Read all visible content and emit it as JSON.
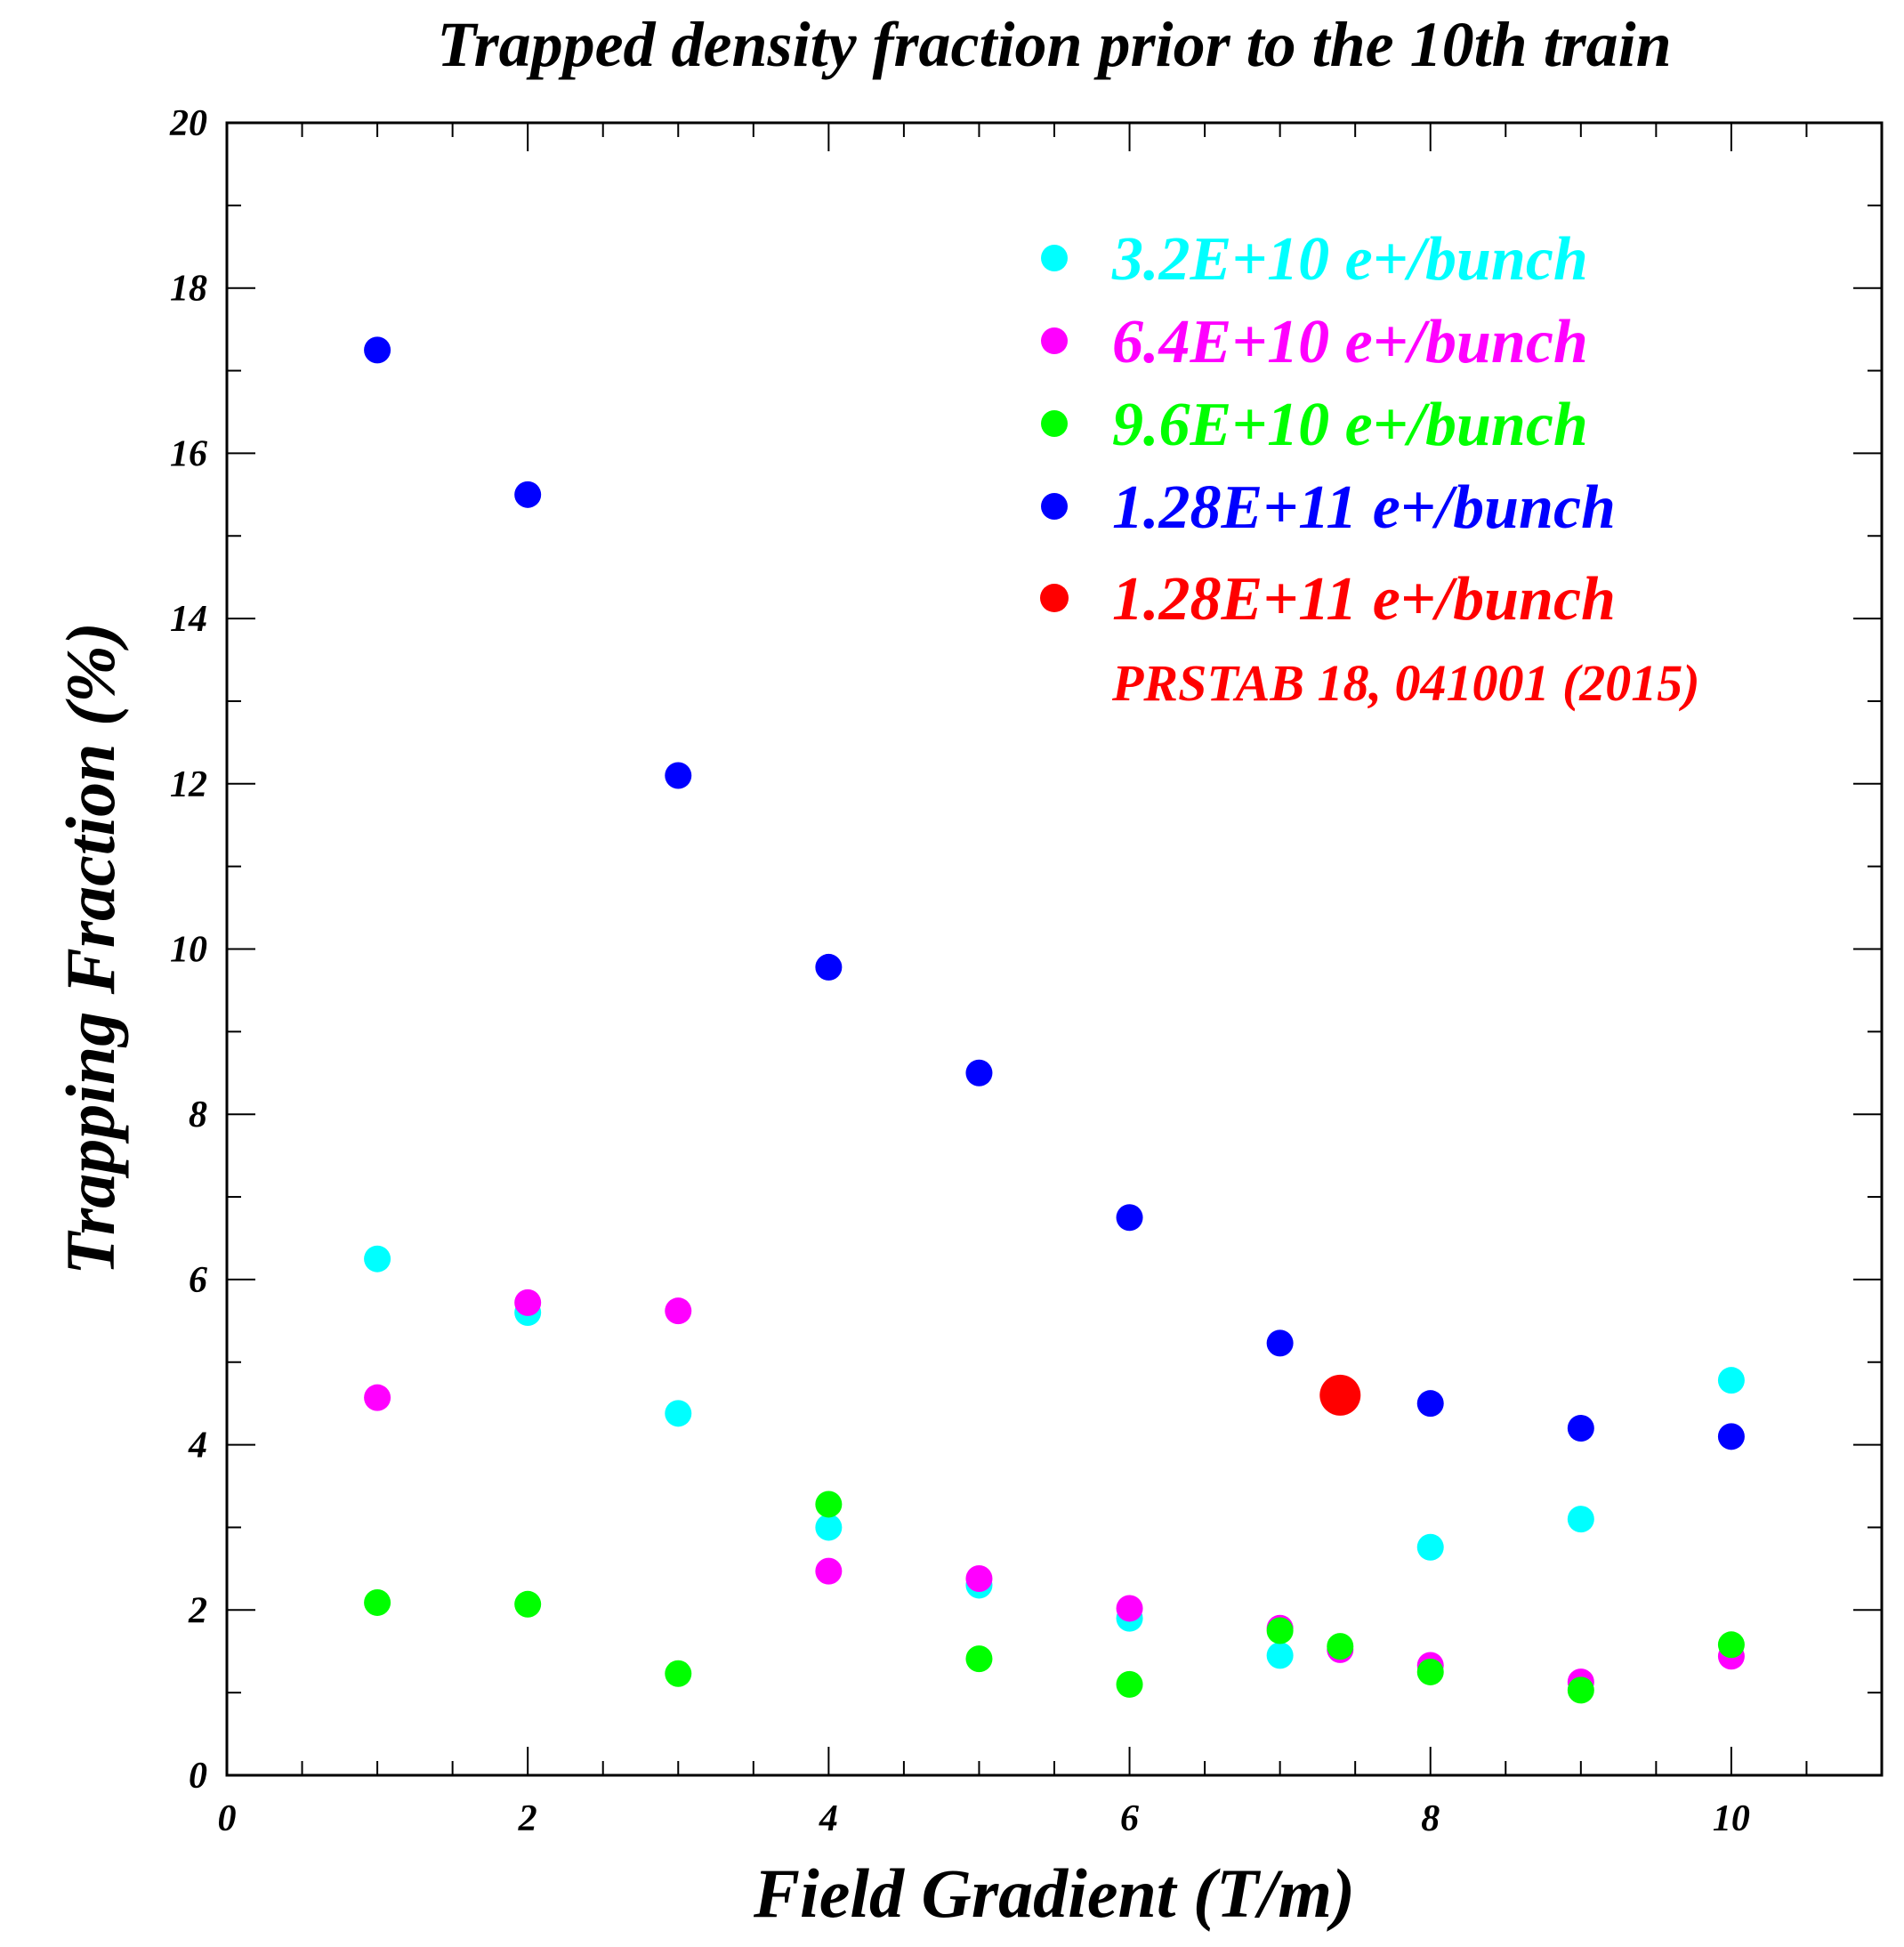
{
  "chart_data": {
    "type": "scatter",
    "title": "Trapped density fraction prior to the 10th train",
    "xlabel": "Field Gradient (T/m)",
    "ylabel": "Trapping Fraction (%)",
    "xlim": [
      0,
      11
    ],
    "ylim": [
      0,
      20
    ],
    "x_ticks": [
      0,
      2,
      4,
      6,
      8,
      10
    ],
    "x_tick_labels": [
      "0",
      "2",
      "4",
      "6",
      "8",
      "10"
    ],
    "y_ticks": [
      0,
      2,
      4,
      6,
      8,
      10,
      12,
      14,
      16,
      18,
      20
    ],
    "y_tick_labels": [
      "0",
      "2",
      "4",
      "6",
      "8",
      "10",
      "12",
      "14",
      "16",
      "18",
      "20"
    ],
    "grid": false,
    "legend_position": "top-right",
    "series": [
      {
        "name": "3.2E+10 e+/bunch",
        "color": "#00ffff",
        "x": [
          1,
          2,
          3,
          4,
          5,
          6,
          7,
          8,
          9,
          10
        ],
        "y": [
          6.25,
          5.6,
          4.38,
          3.0,
          2.3,
          1.9,
          1.45,
          2.76,
          3.1,
          4.78
        ]
      },
      {
        "name": "6.4E+10 e+/bunch",
        "color": "#ff00ff",
        "x": [
          1,
          2,
          3,
          4,
          5,
          6,
          7,
          7.4,
          8,
          9,
          10
        ],
        "y": [
          4.57,
          5.72,
          5.62,
          2.47,
          2.38,
          2.02,
          1.78,
          1.52,
          1.33,
          1.13,
          1.44
        ]
      },
      {
        "name": "9.6E+10 e+/bunch",
        "color": "#00ff00",
        "x": [
          1,
          2,
          3,
          4,
          5,
          6,
          7,
          7.4,
          8,
          9,
          10
        ],
        "y": [
          2.09,
          2.07,
          1.23,
          3.28,
          1.41,
          1.1,
          1.75,
          1.56,
          1.25,
          1.03,
          1.58
        ]
      },
      {
        "name": "1.28E+11 e+/bunch",
        "color": "#0000ff",
        "x": [
          1,
          2,
          3,
          4,
          5,
          6,
          7,
          8,
          9,
          10
        ],
        "y": [
          17.25,
          15.5,
          12.1,
          9.78,
          8.5,
          6.75,
          5.23,
          4.5,
          4.2,
          4.1
        ]
      },
      {
        "name": "1.28E+11 e+/bunch",
        "note": "PRSTAB 18, 041001 (2015)",
        "color": "#ff0000",
        "large_marker": true,
        "x": [
          7.4
        ],
        "y": [
          4.6
        ]
      }
    ]
  }
}
